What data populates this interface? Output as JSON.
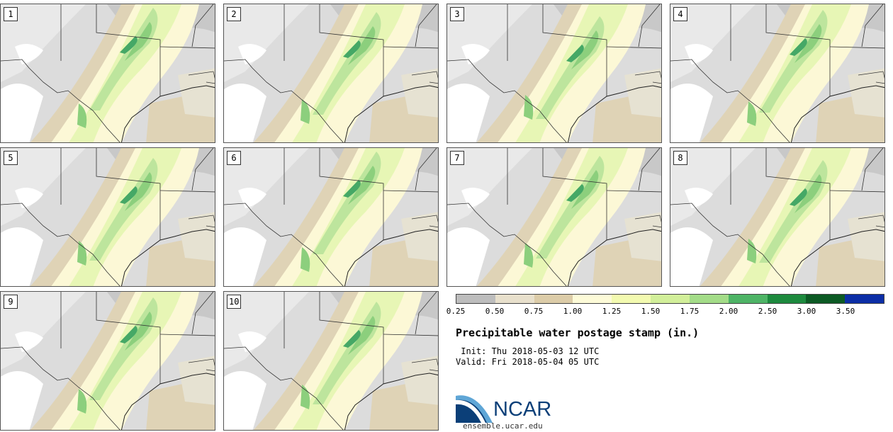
{
  "panels": [
    {
      "label": "1"
    },
    {
      "label": "2"
    },
    {
      "label": "3"
    },
    {
      "label": "4"
    },
    {
      "label": "5"
    },
    {
      "label": "6"
    },
    {
      "label": "7"
    },
    {
      "label": "8"
    },
    {
      "label": "9"
    },
    {
      "label": "10"
    }
  ],
  "legend": {
    "ticks": [
      "0.25",
      "0.50",
      "0.75",
      "1.00",
      "1.25",
      "1.50",
      "1.75",
      "2.00",
      "2.50",
      "3.00",
      "3.50"
    ],
    "colors": [
      "#dddddd",
      "#cccccc",
      "#bdbdbd",
      "#e8e0cc",
      "#dccca8",
      "#fdfbd8",
      "#f3fab0",
      "#d2ef9a",
      "#a3dc88",
      "#4eb466",
      "#1d8a3e",
      "#0c5a24",
      "#0c2ea6"
    ]
  },
  "title": "Precipitable water postage stamp (in.)",
  "init": " Init: Thu 2018-05-03 12 UTC",
  "valid": "Valid: Fri 2018-05-04 05 UTC",
  "logo": {
    "text": "NCAR",
    "color": "#0b3f78"
  },
  "site": "ensemble.ucar.edu"
}
